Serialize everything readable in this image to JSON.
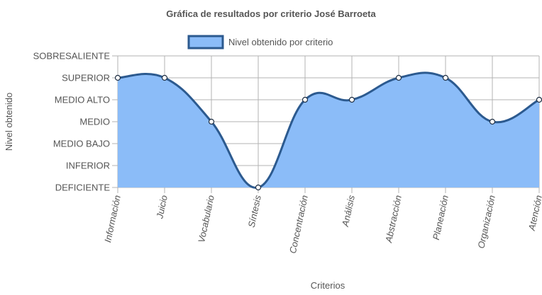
{
  "chart_data": {
    "type": "area",
    "title": "Gráfica de resultados por criterio José Barroeta",
    "xlabel": "Criterios",
    "ylabel": "Nivel obtenido",
    "levels": [
      "DEFICIENTE",
      "INFERIOR",
      "MEDIO BAJO",
      "MEDIO",
      "MEDIO ALTO",
      "SUPERIOR",
      "SOBRESALIENTE"
    ],
    "ylim": [
      0,
      6
    ],
    "categories": [
      "Información",
      "Juicio",
      "Vocabulario",
      "Síntesis",
      "Concentración",
      "Análisis",
      "Abstracción",
      "Planeación",
      "Organización",
      "Atención"
    ],
    "series": [
      {
        "name": "Nivel obtenido por criterio",
        "values": [
          5,
          5,
          3,
          0,
          4,
          4,
          5,
          5,
          3,
          4
        ]
      }
    ],
    "legend_position": "top",
    "grid": true,
    "colors": {
      "fill": "#8bbcf8",
      "line": "#2c5a8f",
      "grid": "#b3b3b3",
      "point_fill": "#ffffff"
    }
  }
}
